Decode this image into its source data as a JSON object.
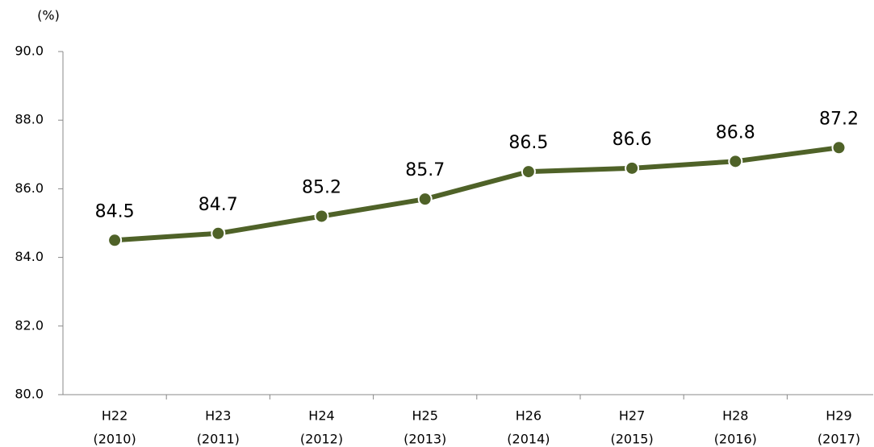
{
  "chart_data": {
    "type": "line",
    "y_label": "(%)",
    "categories": [
      [
        "H22",
        "(2010)"
      ],
      [
        "H23",
        "(2011)"
      ],
      [
        "H24",
        "(2012)"
      ],
      [
        "H25",
        "(2013)"
      ],
      [
        "H26",
        "(2014)"
      ],
      [
        "H27",
        "(2015)"
      ],
      [
        "H28",
        "(2016)"
      ],
      [
        "H29",
        "(2017)"
      ]
    ],
    "series": [
      {
        "name": "rate",
        "color": "#4f6228",
        "values": [
          84.5,
          84.7,
          85.2,
          85.7,
          86.5,
          86.6,
          86.8,
          87.2
        ]
      }
    ],
    "ylim": [
      80,
      90
    ],
    "yticks": [
      {
        "value": 80,
        "label": "80.0"
      },
      {
        "value": 82,
        "label": "82.0"
      },
      {
        "value": 84,
        "label": "84.0"
      },
      {
        "value": 86,
        "label": "86.0"
      },
      {
        "value": 88,
        "label": "88.0"
      },
      {
        "value": 90,
        "label": "90.0"
      }
    ]
  }
}
